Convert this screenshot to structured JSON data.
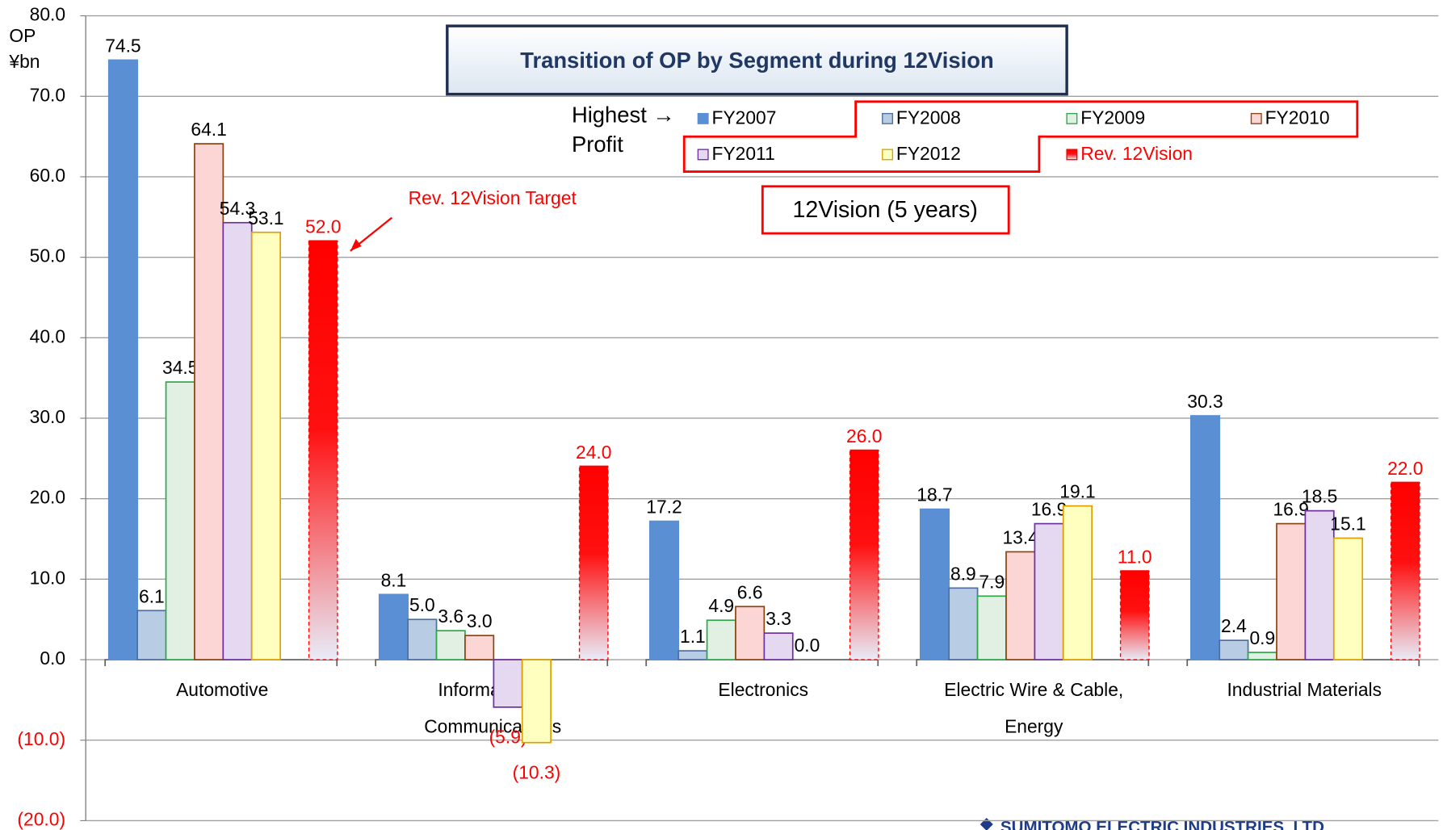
{
  "chart_data": {
    "type": "bar",
    "title": "Transition of OP by Segment during 12Vision",
    "y_label": [
      "OP",
      "¥bn"
    ],
    "categories": [
      [
        "Automotive"
      ],
      [
        "Information &",
        "Communications"
      ],
      [
        "Electronics"
      ],
      [
        "Electric Wire & Cable,",
        "Energy"
      ],
      [
        "Industrial Materials"
      ]
    ],
    "series": [
      {
        "name": "FY2007",
        "color": "#5b8fd4",
        "stroke": "#5b8fd4",
        "values": [
          74.5,
          8.1,
          17.2,
          18.7,
          30.3
        ],
        "value_labels": [
          "74.5",
          "8.1",
          "17.2",
          "18.7",
          "30.3"
        ]
      },
      {
        "name": "FY2008",
        "color": "#b8cce4",
        "stroke": "#4f6fa0",
        "values": [
          6.1,
          5.0,
          1.1,
          8.9,
          2.4
        ],
        "value_labels": [
          "6.1",
          "5.0",
          "1.1",
          "8.9",
          "2.4"
        ]
      },
      {
        "name": "FY2009",
        "color": "#e2f0e4",
        "stroke": "#2ea84a",
        "values": [
          34.5,
          3.6,
          4.9,
          7.9,
          0.9
        ],
        "value_labels": [
          "34.5",
          "3.6",
          "4.9",
          "7.9",
          "0.9"
        ]
      },
      {
        "name": "FY2010",
        "color": "#fcd5d5",
        "stroke": "#8b4513",
        "values": [
          64.1,
          3.0,
          6.6,
          13.4,
          16.9
        ],
        "value_labels": [
          "64.1",
          "3.0",
          "6.6",
          "13.4",
          "16.9"
        ]
      },
      {
        "name": "FY2011",
        "color": "#e4d9f0",
        "stroke": "#7030a0",
        "values": [
          54.3,
          -5.9,
          3.3,
          16.9,
          18.5
        ],
        "value_labels": [
          "54.3",
          "(5.9)",
          "3.3",
          "16.9",
          "18.5"
        ]
      },
      {
        "name": "FY2012",
        "color": "#ffffc0",
        "stroke": "#e0a000",
        "values": [
          53.1,
          -10.3,
          0.0,
          19.1,
          15.1
        ],
        "value_labels": [
          "53.1",
          "(10.3)",
          "0.0",
          "19.1",
          "15.1"
        ]
      },
      {
        "name": "Rev. 12Vision",
        "color": "#ff0000",
        "stroke": "#ff0000",
        "values": [
          52.0,
          24.0,
          26.0,
          11.0,
          22.0
        ],
        "value_labels": [
          "52.0",
          "24.0",
          "26.0",
          "11.0",
          "22.0"
        ]
      }
    ],
    "ylim": [
      -20,
      80
    ],
    "yticks": [
      {
        "value": -20,
        "label": "(20.0)"
      },
      {
        "value": -10,
        "label": "(10.0)"
      },
      {
        "value": 0,
        "label": "0.0"
      },
      {
        "value": 10,
        "label": "10.0"
      },
      {
        "value": 20,
        "label": "20.0"
      },
      {
        "value": 30,
        "label": "30.0"
      },
      {
        "value": 40,
        "label": "40.0"
      },
      {
        "value": 50,
        "label": "50.0"
      },
      {
        "value": 60,
        "label": "60.0"
      },
      {
        "value": 70,
        "label": "70.0"
      },
      {
        "value": 80,
        "label": "80.0"
      }
    ],
    "grid": true,
    "legend_note": [
      "Highest →",
      "Profit"
    ],
    "period_label": "12Vision (5 years)",
    "annotation": "Rev. 12Vision Target",
    "footer": "SUMITOMO ELECTRIC INDUSTRIES, LTD."
  }
}
